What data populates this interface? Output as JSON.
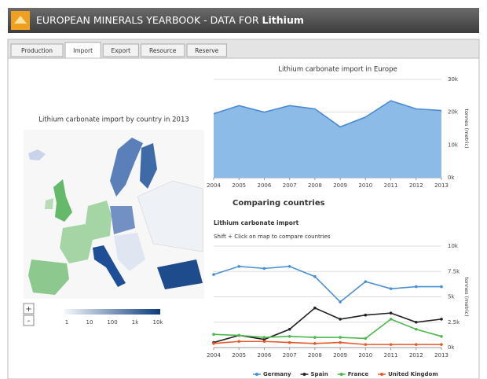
{
  "header": {
    "title": "EUROPEAN MINERALS YEARBOOK - DATA FOR",
    "commodity": "Lithium"
  },
  "tabs": [
    "Production",
    "Import",
    "Export",
    "Resource",
    "Reserve"
  ],
  "active_tab": 1,
  "map": {
    "title": "Lithium carbonate import by country in 2013",
    "legend": [
      "1",
      "10",
      "100",
      "1k",
      "10k"
    ],
    "zoom": [
      "+",
      "-"
    ]
  },
  "section_title": "Comparing countries",
  "hint": "Shift + Click on map to compare countries",
  "chart_data": [
    {
      "type": "area",
      "title": "Lithium carbonate import in Europe",
      "y_label": "tonnes (metric)",
      "x": [
        2004,
        2005,
        2006,
        2007,
        2008,
        2009,
        2010,
        2011,
        2012,
        2013
      ],
      "xlim": [
        2004,
        2013
      ],
      "xticks": [
        2004,
        2005,
        2006,
        2007,
        2008,
        2009,
        2010,
        2011,
        2012,
        2013
      ],
      "series": [
        {
          "name": "Europe",
          "color": "#4a8ad0",
          "fill": "#8dbbe8",
          "values": [
            19500,
            22000,
            20000,
            22000,
            21000,
            15500,
            18500,
            23500,
            21000,
            20500
          ]
        }
      ],
      "ylim": [
        0,
        30000
      ],
      "yticks": [
        {
          "value": 0,
          "label": "0k"
        },
        {
          "value": 10000,
          "label": "10k"
        },
        {
          "value": 20000,
          "label": "20k"
        },
        {
          "value": 30000,
          "label": "30k"
        }
      ],
      "grid": true
    },
    {
      "type": "line",
      "title": "Lithium carbonate import",
      "y_label": "tonnes (metric)",
      "x": [
        2004,
        2005,
        2006,
        2007,
        2008,
        2009,
        2010,
        2011,
        2012,
        2013
      ],
      "xlim": [
        2004,
        2013
      ],
      "xticks": [
        2004,
        2005,
        2006,
        2007,
        2008,
        2009,
        2010,
        2011,
        2012,
        2013
      ],
      "series": [
        {
          "name": "Germany",
          "color": "#4a90d0",
          "values": [
            7200,
            8000,
            7800,
            8000,
            7000,
            4500,
            6500,
            5800,
            6000,
            6000
          ]
        },
        {
          "name": "Spain",
          "color": "#222222",
          "values": [
            500,
            1200,
            800,
            1800,
            3900,
            2800,
            3200,
            3400,
            2500,
            2800
          ]
        },
        {
          "name": "France",
          "color": "#4db84d",
          "values": [
            1300,
            1200,
            1000,
            1100,
            1000,
            1000,
            900,
            2800,
            1800,
            1100
          ]
        },
        {
          "name": "United Kingdom",
          "color": "#e8592a",
          "values": [
            400,
            600,
            600,
            500,
            400,
            500,
            300,
            300,
            300,
            300
          ]
        }
      ],
      "ylim": [
        0,
        10000
      ],
      "yticks": [
        {
          "value": 0,
          "label": "0k"
        },
        {
          "value": 2500,
          "label": "2.5k"
        },
        {
          "value": 5000,
          "label": "5k"
        },
        {
          "value": 7500,
          "label": "7.5k"
        },
        {
          "value": 10000,
          "label": "10k"
        }
      ],
      "grid": true,
      "legend": "bottom"
    }
  ]
}
